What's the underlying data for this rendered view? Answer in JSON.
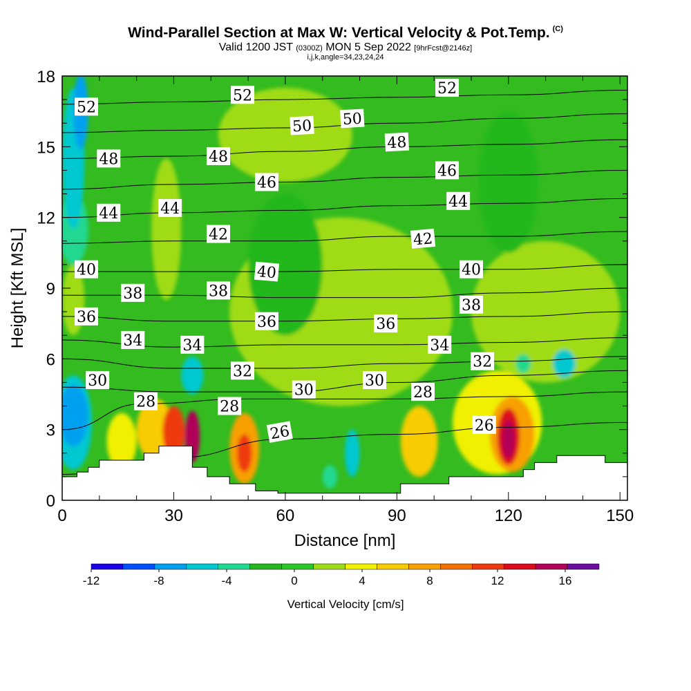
{
  "header": {
    "title": "Wind-Parallel Section at Max W: Vertical Velocity & Pot.Temp.",
    "copyright_mark": "(C)",
    "valid_prefix": "Valid 1200 JST",
    "valid_utc": "(0300Z)",
    "valid_date": "MON 5 Sep 2022",
    "forecast_info": "[9hrFcst@2146z]",
    "section_params": "i,j,k,angle=34,23,24,24"
  },
  "colors": {
    "background_field": "#33bb1f",
    "terrain": "#ffffff",
    "contour": "#000000",
    "scale": [
      "#1a00e6",
      "#0050ff",
      "#00a0f0",
      "#00c8d0",
      "#20d890",
      "#24b81e",
      "#2cc828",
      "#a0dc18",
      "#f0f000",
      "#f8cc00",
      "#f8a000",
      "#f07000",
      "#ee3a10",
      "#dc0a1a",
      "#b00058",
      "#6a0ca0"
    ]
  },
  "chart_data": {
    "type": "heatmap",
    "title": "Wind-Parallel Section at Max W: Vertical Velocity & Pot.Temp.",
    "xlabel": "Distance [nm]",
    "ylabel": "Height [Kft MSL]",
    "xlim": [
      0,
      152
    ],
    "ylim": [
      0,
      18
    ],
    "x_ticks": [
      "0",
      "30",
      "60",
      "90",
      "120",
      "150"
    ],
    "y_ticks": [
      "0",
      "3",
      "6",
      "9",
      "12",
      "15",
      "18"
    ],
    "colorbar": {
      "label": "Vertical Velocity [cm/s]",
      "levels": [
        -12,
        -10,
        -8,
        -6,
        -4,
        -2,
        0,
        2,
        4,
        6,
        8,
        10,
        12,
        14,
        16,
        18
      ],
      "tick_labels": [
        "-12",
        "-8",
        "-4",
        "0",
        "4",
        "8",
        "12",
        "16"
      ]
    },
    "terrain_profile": [
      {
        "x": 0,
        "z": 1.0
      },
      {
        "x": 4,
        "z": 1.0
      },
      {
        "x": 4,
        "z": 1.2
      },
      {
        "x": 7,
        "z": 1.2
      },
      {
        "x": 7,
        "z": 1.4
      },
      {
        "x": 10,
        "z": 1.4
      },
      {
        "x": 10,
        "z": 1.7
      },
      {
        "x": 22,
        "z": 1.7
      },
      {
        "x": 22,
        "z": 2.0
      },
      {
        "x": 26,
        "z": 2.0
      },
      {
        "x": 26,
        "z": 2.3
      },
      {
        "x": 35,
        "z": 2.3
      },
      {
        "x": 35,
        "z": 1.4
      },
      {
        "x": 39,
        "z": 1.4
      },
      {
        "x": 39,
        "z": 1.0
      },
      {
        "x": 45,
        "z": 1.0
      },
      {
        "x": 45,
        "z": 0.7
      },
      {
        "x": 52,
        "z": 0.7
      },
      {
        "x": 52,
        "z": 0.4
      },
      {
        "x": 58,
        "z": 0.4
      },
      {
        "x": 58,
        "z": 0.3
      },
      {
        "x": 91,
        "z": 0.3
      },
      {
        "x": 91,
        "z": 0.7
      },
      {
        "x": 104,
        "z": 0.7
      },
      {
        "x": 104,
        "z": 1.0
      },
      {
        "x": 124,
        "z": 1.0
      },
      {
        "x": 124,
        "z": 1.3
      },
      {
        "x": 127,
        "z": 1.3
      },
      {
        "x": 127,
        "z": 1.6
      },
      {
        "x": 133,
        "z": 1.6
      },
      {
        "x": 133,
        "z": 1.9
      },
      {
        "x": 146,
        "z": 1.9
      },
      {
        "x": 146,
        "z": 1.6
      },
      {
        "x": 152,
        "z": 1.6
      }
    ],
    "vv_features": [
      {
        "x": 5,
        "z": 16.5,
        "rx": 2,
        "rz": 1.6,
        "v": -8
      },
      {
        "x": 3,
        "z": 14.5,
        "rx": 3,
        "rz": 3.0,
        "v": -6
      },
      {
        "x": 3,
        "z": 11.5,
        "rx": 4,
        "rz": 1.5,
        "v": -4
      },
      {
        "x": 3,
        "z": 3.6,
        "rx": 4,
        "rz": 1.3,
        "v": -8
      },
      {
        "x": 3,
        "z": 3.3,
        "rx": 5,
        "rz": 2.0,
        "v": -5
      },
      {
        "x": 35,
        "z": 5.3,
        "rx": 3,
        "rz": 0.8,
        "v": -5
      },
      {
        "x": 78,
        "z": 2.0,
        "rx": 2,
        "rz": 1.0,
        "v": -6
      },
      {
        "x": 72,
        "z": 1.0,
        "rx": 2,
        "rz": 0.5,
        "v": -3
      },
      {
        "x": 124,
        "z": 5.8,
        "rx": 2,
        "rz": 0.4,
        "v": -4
      },
      {
        "x": 135,
        "z": 5.8,
        "rx": 3,
        "rz": 0.6,
        "v": -5
      },
      {
        "x": 25,
        "z": 3.0,
        "rx": 5,
        "rz": 1.3,
        "v": 6
      },
      {
        "x": 30,
        "z": 2.9,
        "rx": 3,
        "rz": 1.1,
        "v": 12
      },
      {
        "x": 35,
        "z": 2.7,
        "rx": 2,
        "rz": 1.1,
        "v": 17
      },
      {
        "x": 16,
        "z": 2.5,
        "rx": 4,
        "rz": 1.2,
        "v": 5
      },
      {
        "x": 49,
        "z": 2.2,
        "rx": 4,
        "rz": 1.5,
        "v": 8
      },
      {
        "x": 49,
        "z": 2.0,
        "rx": 2,
        "rz": 0.8,
        "v": 13
      },
      {
        "x": 96,
        "z": 2.5,
        "rx": 5,
        "rz": 1.5,
        "v": 6
      },
      {
        "x": 117,
        "z": 3.3,
        "rx": 12,
        "rz": 2.2,
        "v": 5
      },
      {
        "x": 121,
        "z": 2.8,
        "rx": 6,
        "rz": 1.6,
        "v": 9
      },
      {
        "x": 120,
        "z": 2.7,
        "rx": 3,
        "rz": 1.2,
        "v": 14
      },
      {
        "x": 120,
        "z": 2.6,
        "rx": 1.6,
        "rz": 0.8,
        "v": 17
      },
      {
        "x": 75,
        "z": 8.0,
        "rx": 30,
        "rz": 4.0,
        "v": 2
      },
      {
        "x": 130,
        "z": 8.0,
        "rx": 20,
        "rz": 3.0,
        "v": 2
      },
      {
        "x": 3,
        "z": 8.5,
        "rx": 3,
        "rz": 1.5,
        "v": 3
      },
      {
        "x": 28,
        "z": 11.5,
        "rx": 4,
        "rz": 3.0,
        "v": 2
      },
      {
        "x": 60,
        "z": 10.0,
        "rx": 10,
        "rz": 3.0,
        "v": -2
      },
      {
        "x": 120,
        "z": 13.5,
        "rx": 8,
        "rz": 3.0,
        "v": -2
      },
      {
        "x": 60,
        "z": 15.5,
        "rx": 18,
        "rz": 2.0,
        "v": 2
      }
    ],
    "isentropes": [
      {
        "label": "26",
        "points": [
          [
            0,
            1.1
          ],
          [
            30,
            1.8
          ],
          [
            60,
            2.6
          ],
          [
            90,
            2.8
          ],
          [
            120,
            3.1
          ],
          [
            152,
            3.3
          ]
        ]
      },
      {
        "label": "28",
        "points": [
          [
            0,
            3.0
          ],
          [
            22,
            4.1
          ],
          [
            50,
            4.3
          ],
          [
            90,
            4.3
          ],
          [
            120,
            4.4
          ],
          [
            152,
            4.6
          ]
        ]
      },
      {
        "label": "30",
        "points": [
          [
            0,
            4.8
          ],
          [
            30,
            4.6
          ],
          [
            60,
            4.6
          ],
          [
            90,
            5.0
          ],
          [
            120,
            5.3
          ],
          [
            152,
            5.5
          ]
        ]
      },
      {
        "label": "32",
        "points": [
          [
            0,
            6.0
          ],
          [
            30,
            5.6
          ],
          [
            60,
            5.6
          ],
          [
            90,
            5.8
          ],
          [
            120,
            5.9
          ],
          [
            152,
            6.1
          ]
        ]
      },
      {
        "label": "34",
        "points": [
          [
            0,
            6.8
          ],
          [
            30,
            6.5
          ],
          [
            60,
            6.6
          ],
          [
            90,
            6.6
          ],
          [
            120,
            6.7
          ],
          [
            152,
            6.9
          ]
        ]
      },
      {
        "label": "36",
        "points": [
          [
            0,
            7.8
          ],
          [
            30,
            7.6
          ],
          [
            60,
            7.6
          ],
          [
            90,
            7.7
          ],
          [
            120,
            7.8
          ],
          [
            152,
            8.0
          ]
        ]
      },
      {
        "label": "38",
        "points": [
          [
            0,
            8.7
          ],
          [
            30,
            8.7
          ],
          [
            60,
            8.6
          ],
          [
            90,
            8.6
          ],
          [
            120,
            8.8
          ],
          [
            152,
            9.0
          ]
        ]
      },
      {
        "label": "40",
        "points": [
          [
            0,
            9.7
          ],
          [
            30,
            9.7
          ],
          [
            60,
            9.7
          ],
          [
            90,
            9.8
          ],
          [
            120,
            9.8
          ],
          [
            152,
            10.0
          ]
        ]
      },
      {
        "label": "42",
        "points": [
          [
            0,
            10.9
          ],
          [
            30,
            11.0
          ],
          [
            60,
            11.0
          ],
          [
            90,
            11.2
          ],
          [
            120,
            11.2
          ],
          [
            152,
            11.4
          ]
        ]
      },
      {
        "label": "44",
        "points": [
          [
            0,
            12.0
          ],
          [
            30,
            12.2
          ],
          [
            60,
            12.3
          ],
          [
            90,
            12.5
          ],
          [
            120,
            12.6
          ],
          [
            152,
            12.8
          ]
        ]
      },
      {
        "label": "46",
        "points": [
          [
            0,
            13.2
          ],
          [
            30,
            13.4
          ],
          [
            60,
            13.5
          ],
          [
            90,
            13.7
          ],
          [
            120,
            13.8
          ],
          [
            152,
            14.0
          ]
        ]
      },
      {
        "label": "48",
        "points": [
          [
            0,
            14.5
          ],
          [
            30,
            14.6
          ],
          [
            60,
            14.8
          ],
          [
            90,
            15.0
          ],
          [
            120,
            15.1
          ],
          [
            152,
            15.3
          ]
        ]
      },
      {
        "label": "50",
        "points": [
          [
            0,
            15.6
          ],
          [
            30,
            15.7
          ],
          [
            60,
            15.8
          ],
          [
            90,
            16.0
          ],
          [
            120,
            16.2
          ],
          [
            152,
            16.4
          ]
        ]
      },
      {
        "label": "52",
        "points": [
          [
            0,
            16.8
          ],
          [
            30,
            16.9
          ],
          [
            60,
            17.0
          ],
          [
            90,
            17.1
          ],
          [
            120,
            17.2
          ],
          [
            152,
            17.4
          ]
        ]
      }
    ],
    "contour_labels": [
      {
        "text": "52",
        "x": 6.5,
        "z": 16.7,
        "rot": 0
      },
      {
        "text": "52",
        "x": 48.5,
        "z": 17.2,
        "rot": 0
      },
      {
        "text": "52",
        "x": 103.5,
        "z": 17.5,
        "rot": 0
      },
      {
        "text": "50",
        "x": 64.5,
        "z": 15.9,
        "rot": -3
      },
      {
        "text": "50",
        "x": 78,
        "z": 16.2,
        "rot": -3
      },
      {
        "text": "48",
        "x": 12.5,
        "z": 14.5,
        "rot": 0
      },
      {
        "text": "48",
        "x": 42,
        "z": 14.6,
        "rot": 0
      },
      {
        "text": "48",
        "x": 90,
        "z": 15.2,
        "rot": -3
      },
      {
        "text": "46",
        "x": 55,
        "z": 13.5,
        "rot": 0
      },
      {
        "text": "46",
        "x": 103.5,
        "z": 14.0,
        "rot": 0
      },
      {
        "text": "44",
        "x": 12.5,
        "z": 12.2,
        "rot": 0
      },
      {
        "text": "44",
        "x": 29,
        "z": 12.4,
        "rot": 0
      },
      {
        "text": "44",
        "x": 106.5,
        "z": 12.7,
        "rot": 0
      },
      {
        "text": "42",
        "x": 42,
        "z": 11.3,
        "rot": 0
      },
      {
        "text": "42",
        "x": 97,
        "z": 11.1,
        "rot": -5
      },
      {
        "text": "40",
        "x": 6.5,
        "z": 9.8,
        "rot": 0
      },
      {
        "text": "40",
        "x": 55,
        "z": 9.7,
        "rot": 5
      },
      {
        "text": "40",
        "x": 110,
        "z": 9.8,
        "rot": 0
      },
      {
        "text": "38",
        "x": 19,
        "z": 8.8,
        "rot": 0
      },
      {
        "text": "38",
        "x": 42,
        "z": 8.9,
        "rot": 0
      },
      {
        "text": "38",
        "x": 110,
        "z": 8.3,
        "rot": 0
      },
      {
        "text": "36",
        "x": 6.5,
        "z": 7.8,
        "rot": 0
      },
      {
        "text": "36",
        "x": 55,
        "z": 7.6,
        "rot": 0
      },
      {
        "text": "36",
        "x": 87,
        "z": 7.5,
        "rot": 0
      },
      {
        "text": "34",
        "x": 19,
        "z": 6.8,
        "rot": 0
      },
      {
        "text": "34",
        "x": 35,
        "z": 6.6,
        "rot": 0
      },
      {
        "text": "34",
        "x": 101.5,
        "z": 6.6,
        "rot": 0
      },
      {
        "text": "32",
        "x": 48.5,
        "z": 5.5,
        "rot": 0
      },
      {
        "text": "32",
        "x": 113,
        "z": 5.9,
        "rot": 0
      },
      {
        "text": "30",
        "x": 9.5,
        "z": 5.1,
        "rot": 0
      },
      {
        "text": "30",
        "x": 65,
        "z": 4.7,
        "rot": 0
      },
      {
        "text": "30",
        "x": 84,
        "z": 5.1,
        "rot": 0
      },
      {
        "text": "28",
        "x": 22.5,
        "z": 4.2,
        "rot": 0
      },
      {
        "text": "28",
        "x": 45,
        "z": 4.0,
        "rot": 0
      },
      {
        "text": "28",
        "x": 97,
        "z": 4.6,
        "rot": 0
      },
      {
        "text": "26",
        "x": 58.5,
        "z": 2.9,
        "rot": -10
      },
      {
        "text": "26",
        "x": 113.5,
        "z": 3.2,
        "rot": 0
      }
    ]
  }
}
